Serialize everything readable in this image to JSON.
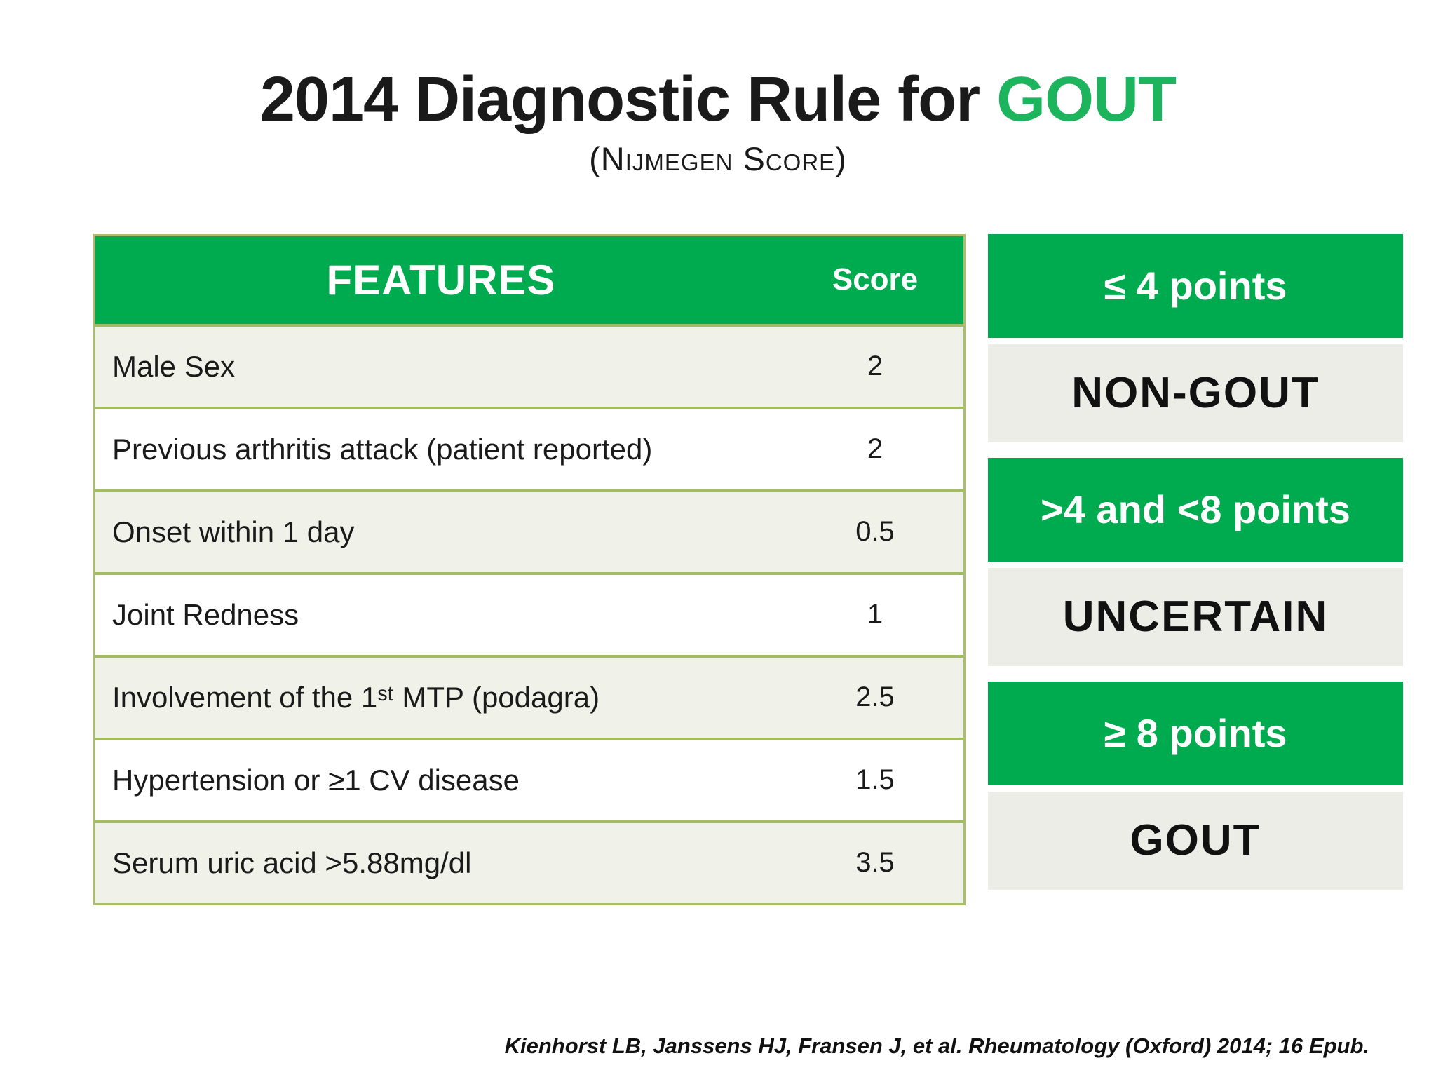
{
  "title": {
    "prefix": "2014 Diagnostic Rule for ",
    "accent": "GOUT",
    "subtitle": "(Nijmegen Score)"
  },
  "table": {
    "headers": {
      "features": "FEATURES",
      "score": "Score"
    },
    "rows": [
      {
        "feature": "Male Sex",
        "score": "2"
      },
      {
        "feature": "Previous arthritis attack (patient reported)",
        "score": "2"
      },
      {
        "feature": "Onset within 1 day",
        "score": "0.5"
      },
      {
        "feature": "Joint Redness",
        "score": "1"
      },
      {
        "feature": "Involvement of the 1ˢᵗ MTP (podagra)",
        "score": "2.5"
      },
      {
        "feature": "Hypertension or ≥1 CV disease",
        "score": "1.5"
      },
      {
        "feature": "Serum uric acid >5.88mg/dl",
        "score": "3.5"
      }
    ]
  },
  "results": [
    {
      "points": "≤ 4 points",
      "verdict": "NON-GOUT"
    },
    {
      "points": ">4 and <8 points",
      "verdict": "UNCERTAIN"
    },
    {
      "points": "≥ 8 points",
      "verdict": "GOUT"
    }
  ],
  "citation": "Kienhorst LB, Janssens HJ, Fransen J, et al. Rheumatology (Oxford) 2014; 16 Epub.",
  "colors": {
    "accent_green": "#00ab50",
    "title_green": "#1cb45c",
    "table_border_olive": "#aabf6d",
    "row_separator_olive": "#a3bc62",
    "row_alt_background": "#f0f2ea",
    "verdict_box_gray": "#edede8",
    "text_black": "#1a1a1a"
  }
}
